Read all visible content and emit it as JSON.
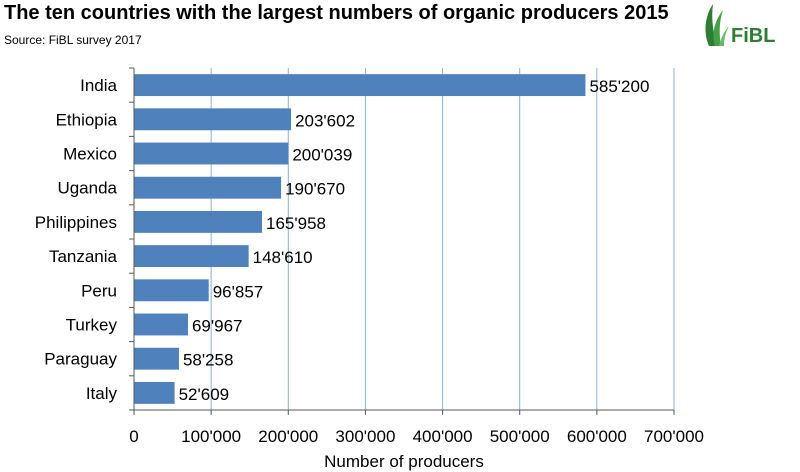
{
  "title": "The ten countries with the largest numbers of organic producers 2015",
  "subtitle": "Source: FiBL survey 2017",
  "logo_text": "FiBL",
  "colors": {
    "bar": "#4f81bd",
    "grid": "#8eb0d6",
    "axis": "#595959",
    "logo": "#2e7d32"
  },
  "chart_data": {
    "type": "bar",
    "orientation": "horizontal",
    "categories": [
      "India",
      "Ethiopia",
      "Mexico",
      "Uganda",
      "Philippines",
      "Tanzania",
      "Peru",
      "Turkey",
      "Paraguay",
      "Italy"
    ],
    "values": [
      585200,
      203602,
      200039,
      190670,
      165958,
      148610,
      96857,
      69967,
      58258,
      52609
    ],
    "value_labels": [
      "585'200",
      "203'602",
      "200'039",
      "190'670",
      "165'958",
      "148'610",
      "96'857",
      "69'967",
      "58'258",
      "52'609"
    ],
    "xlabel": "Number of producers",
    "ylabel": "",
    "xlim": [
      0,
      700000
    ],
    "xticks": [
      0,
      100000,
      200000,
      300000,
      400000,
      500000,
      600000,
      700000
    ],
    "xtick_labels": [
      "0",
      "100'000",
      "200'000",
      "300'000",
      "400'000",
      "500'000",
      "600'000",
      "700'000"
    ],
    "grid": "vertical",
    "legend": "none"
  }
}
